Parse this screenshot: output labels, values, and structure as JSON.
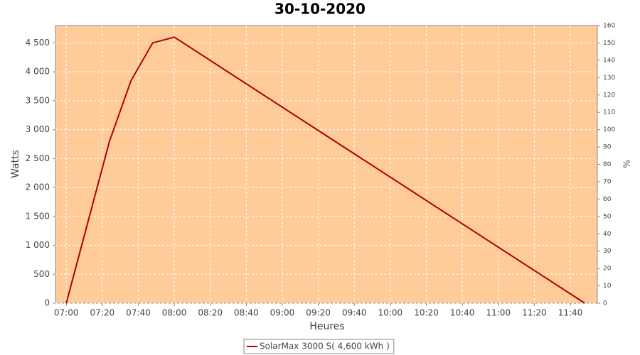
{
  "chart_data": {
    "type": "line",
    "title": "30-10-2020",
    "x_label": "Heures",
    "y_label": "Watts",
    "y2_label": "%",
    "x": [
      "07:00",
      "07:12",
      "07:24",
      "07:36",
      "07:48",
      "08:00",
      "11:48"
    ],
    "series": [
      {
        "name": "SolarMax 3000 S( 4,600 kWh )",
        "color": "#b00000",
        "values": [
          0,
          1400,
          2800,
          3850,
          4500,
          4600,
          0
        ]
      }
    ],
    "xlim": [
      "06:54",
      "11:55"
    ],
    "xticks": [
      "07:00",
      "07:20",
      "07:40",
      "08:00",
      "08:20",
      "08:40",
      "09:00",
      "09:20",
      "09:40",
      "10:00",
      "10:20",
      "10:40",
      "11:00",
      "11:20",
      "11:40"
    ],
    "ylim": [
      0,
      4800
    ],
    "yticks": [
      0,
      500,
      {
        "value": 1000,
        "label": "1 000"
      },
      {
        "value": 1500,
        "label": "1 500"
      },
      {
        "value": 2000,
        "label": "2 000"
      },
      {
        "value": 2500,
        "label": "2 500"
      },
      {
        "value": 3000,
        "label": "3 000"
      },
      {
        "value": 3500,
        "label": "3 500"
      },
      {
        "value": 4000,
        "label": "4 000"
      },
      {
        "value": 4500,
        "label": "4 500"
      }
    ],
    "y2lim": [
      0,
      160
    ],
    "y2ticks": [
      0,
      10,
      20,
      30,
      40,
      50,
      60,
      70,
      80,
      90,
      100,
      110,
      120,
      130,
      140,
      150,
      160
    ],
    "background": "#ffcc99",
    "grid": true
  }
}
